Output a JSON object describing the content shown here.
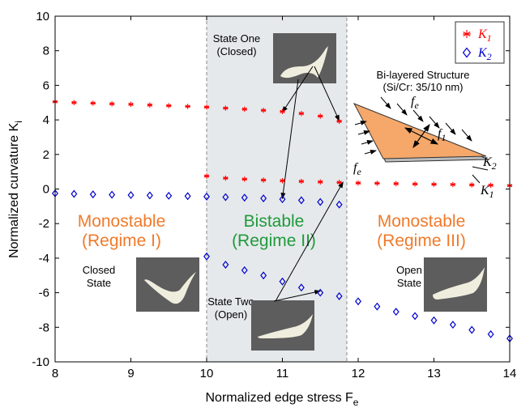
{
  "chart_data": {
    "type": "scatter",
    "title": "",
    "xlabel_main": "Normalized edge stress F",
    "xlabel_sub": "e",
    "ylabel_main": "Normalized curvature K",
    "ylabel_sub": "i",
    "xlim": [
      8,
      14
    ],
    "ylim": [
      -10,
      10
    ],
    "x_ticks": [
      "8",
      "9",
      "10",
      "11",
      "12",
      "13",
      "14"
    ],
    "y_ticks": [
      "-10",
      "-8",
      "-6",
      "-4",
      "-2",
      "0",
      "2",
      "4",
      "6",
      "8",
      "10"
    ],
    "grid": false,
    "legend_position": "top-right",
    "series": [
      {
        "name": "K",
        "name_sub": "1",
        "marker": "*",
        "color": "#ff0000",
        "points": [
          [
            8.0,
            5.05
          ],
          [
            8.25,
            5.0
          ],
          [
            8.5,
            4.97
          ],
          [
            8.75,
            4.93
          ],
          [
            9.0,
            4.9
          ],
          [
            9.25,
            4.86
          ],
          [
            9.5,
            4.82
          ],
          [
            9.75,
            4.78
          ],
          [
            10.0,
            4.74
          ],
          [
            10.25,
            4.68
          ],
          [
            10.5,
            4.62
          ],
          [
            10.75,
            4.55
          ],
          [
            11.0,
            4.48
          ],
          [
            11.25,
            4.37
          ],
          [
            11.5,
            4.22
          ],
          [
            11.75,
            3.92
          ],
          [
            10.0,
            0.75
          ],
          [
            10.25,
            0.63
          ],
          [
            10.5,
            0.57
          ],
          [
            10.75,
            0.52
          ],
          [
            11.0,
            0.48
          ],
          [
            11.25,
            0.44
          ],
          [
            11.5,
            0.41
          ],
          [
            11.75,
            0.38
          ],
          [
            12.0,
            0.35
          ],
          [
            12.25,
            0.33
          ],
          [
            12.5,
            0.31
          ],
          [
            12.75,
            0.29
          ],
          [
            13.0,
            0.27
          ],
          [
            13.25,
            0.26
          ],
          [
            13.5,
            0.24
          ],
          [
            13.75,
            0.22
          ],
          [
            14.0,
            0.2
          ]
        ]
      },
      {
        "name": "K",
        "name_sub": "2",
        "marker": "diamond",
        "color": "#0000cc",
        "points": [
          [
            8.0,
            -0.25
          ],
          [
            8.25,
            -0.28
          ],
          [
            8.5,
            -0.31
          ],
          [
            8.75,
            -0.33
          ],
          [
            9.0,
            -0.35
          ],
          [
            9.25,
            -0.37
          ],
          [
            9.5,
            -0.39
          ],
          [
            9.75,
            -0.41
          ],
          [
            10.0,
            -0.44
          ],
          [
            10.25,
            -0.47
          ],
          [
            10.5,
            -0.5
          ],
          [
            10.75,
            -0.54
          ],
          [
            11.0,
            -0.59
          ],
          [
            11.25,
            -0.65
          ],
          [
            11.5,
            -0.75
          ],
          [
            11.75,
            -0.9
          ],
          [
            10.0,
            -3.9
          ],
          [
            10.25,
            -4.38
          ],
          [
            10.5,
            -4.7
          ],
          [
            10.75,
            -5.0
          ],
          [
            11.0,
            -5.35
          ],
          [
            11.25,
            -5.7
          ],
          [
            11.5,
            -6.0
          ],
          [
            11.75,
            -6.2
          ],
          [
            12.0,
            -6.5
          ],
          [
            12.25,
            -6.8
          ],
          [
            12.5,
            -7.1
          ],
          [
            12.75,
            -7.35
          ],
          [
            13.0,
            -7.6
          ],
          [
            13.25,
            -7.85
          ],
          [
            13.5,
            -8.15
          ],
          [
            13.75,
            -8.4
          ],
          [
            14.0,
            -8.65
          ]
        ]
      }
    ],
    "bistable_region": [
      10,
      11.85
    ],
    "regime_labels": [
      {
        "line1": "Monostable",
        "line2": "(Regime I)",
        "color": "#f07a2a"
      },
      {
        "line1": "Bistable",
        "line2": "(Regime II)",
        "color": "#1f9a3a"
      },
      {
        "line1": "Monostable",
        "line2": "(Regime III)",
        "color": "#f07a2a"
      }
    ],
    "annotations": {
      "state_one": {
        "line1": "State One",
        "line2": "(Closed)"
      },
      "state_two": {
        "line1": "State Two",
        "line2": "(Open)"
      },
      "closed_state": {
        "line1": "Closed",
        "line2": "State"
      },
      "open_state": {
        "line1": "Open",
        "line2": "State"
      },
      "structure_title": {
        "line1": "Bi-layered Structure",
        "line2": "(Si/Cr: 35/10 nm)"
      },
      "fe": "f",
      "fe_sub": "e",
      "f1": "f",
      "f1_sub": "1",
      "k1": "K",
      "k1_sub": "1",
      "k2": "K",
      "k2_sub": "2"
    },
    "colors": {
      "plate_fill": "#f5a86a",
      "region_fill": "#e6e9ec",
      "photo_bg": "#5d5d5d",
      "object": "#efeede"
    }
  }
}
